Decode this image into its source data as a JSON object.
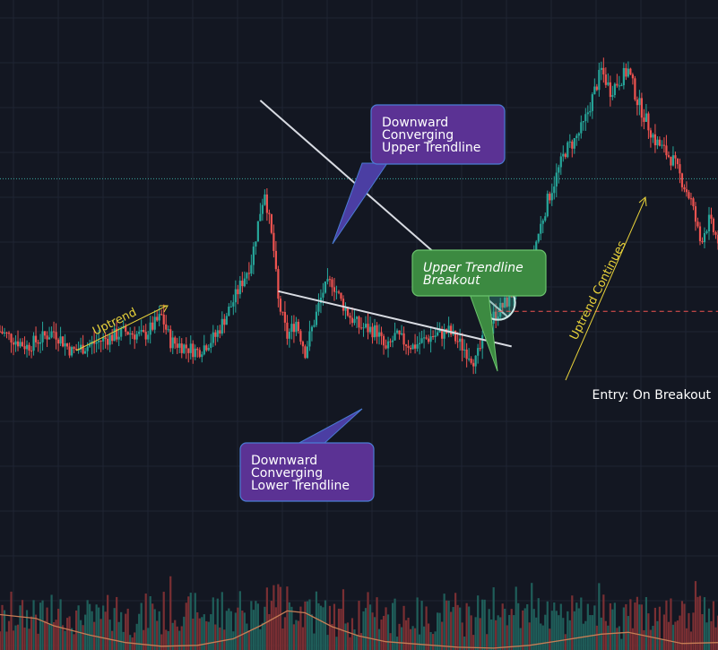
{
  "chart_data": {
    "type": "candlestick",
    "x_range": [
      0,
      160
    ],
    "price_range": [
      0,
      100
    ],
    "volume_range": [
      0,
      130
    ],
    "grid": true,
    "colors": {
      "background": "#131722",
      "grid": "#1f2433",
      "bull": "#26a69a",
      "bear": "#ef5350",
      "volume_bull": "#1f5e5a",
      "volume_bear": "#7a2f33",
      "volume_ma": "#c67d55",
      "trendline": "#d8dbe2",
      "price_line": "#3aa8a0",
      "entry_line": "#ef5350",
      "arrow_label": "#e8d23a"
    },
    "current_price_level": 64.4,
    "entry_level": 38,
    "upper_trendline": [
      [
        58,
        80
      ],
      [
        113,
        37
      ]
    ],
    "lower_trendline": [
      [
        62,
        42
      ],
      [
        114,
        31
      ]
    ],
    "breakout_point": [
      111,
      39.7
    ],
    "volume_ma": [
      [
        0,
        38
      ],
      [
        8,
        34
      ],
      [
        12,
        26
      ],
      [
        20,
        16
      ],
      [
        28,
        8
      ],
      [
        36,
        4
      ],
      [
        44,
        5
      ],
      [
        52,
        12
      ],
      [
        58,
        26
      ],
      [
        64,
        42
      ],
      [
        68,
        40
      ],
      [
        74,
        25
      ],
      [
        80,
        15
      ],
      [
        86,
        9
      ],
      [
        94,
        6
      ],
      [
        102,
        3
      ],
      [
        110,
        2
      ],
      [
        118,
        5
      ],
      [
        126,
        11
      ],
      [
        134,
        17
      ],
      [
        140,
        19
      ],
      [
        146,
        13
      ],
      [
        152,
        7
      ],
      [
        160,
        8
      ]
    ]
  },
  "annotations": {
    "uptrend_label": "Uptrend",
    "uptrend_continues_label": "Uptrend Continues",
    "entry_label": "Entry: On Breakout",
    "upper_callout": [
      "Downward",
      "Converging",
      "Upper Trendline"
    ],
    "lower_callout": [
      "Downward",
      "Converging",
      "Lower Trendline"
    ],
    "breakout_callout": [
      "Upper Trendline",
      "Breakout"
    ],
    "callout_colors": {
      "purple_fill": "#5b3294",
      "purple_stroke": "#4a7bd3",
      "green_fill": "#3c8a41",
      "green_stroke": "#6ac36c"
    }
  }
}
